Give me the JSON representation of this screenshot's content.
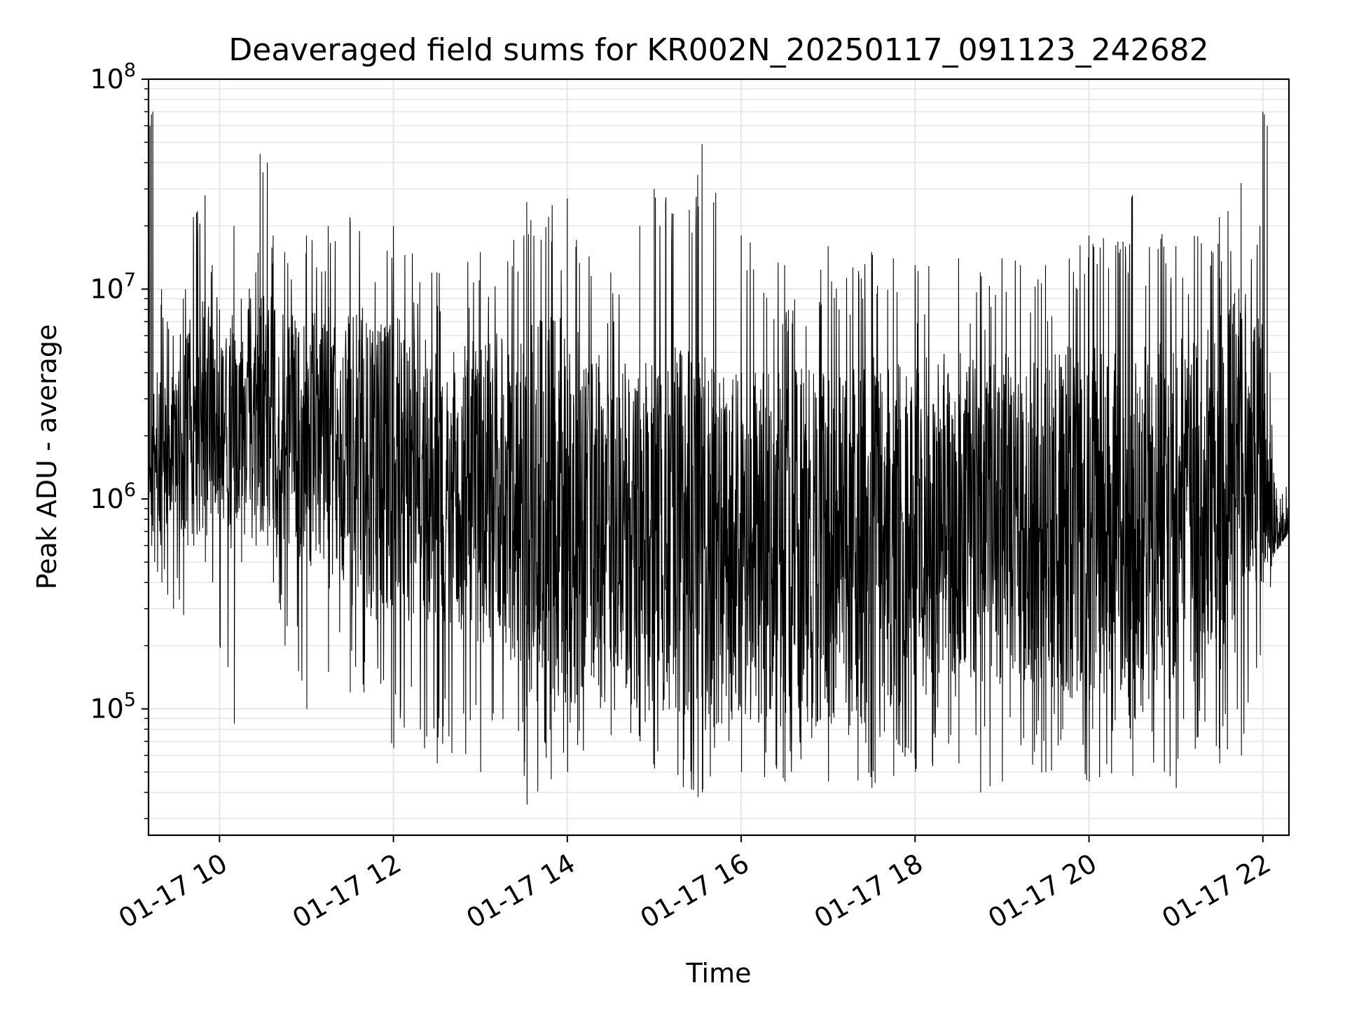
{
  "chart_data": {
    "type": "line",
    "title": "Deaveraged field sums for KR002N_20250117_091123_242682",
    "xlabel": "Time",
    "ylabel": "Peak ADU - average",
    "yscale": "log",
    "ylim": [
      25000,
      100000000
    ],
    "xlim": [
      "2025-01-17 09:11",
      "2025-01-17 22:18"
    ],
    "grid": true,
    "line_color": "#000000",
    "grid_color": "#e6e6e6",
    "xticks": [
      {
        "value": "2025-01-17 10:00",
        "label": "01-17 10"
      },
      {
        "value": "2025-01-17 12:00",
        "label": "01-17 12"
      },
      {
        "value": "2025-01-17 14:00",
        "label": "01-17 14"
      },
      {
        "value": "2025-01-17 16:00",
        "label": "01-17 16"
      },
      {
        "value": "2025-01-17 18:00",
        "label": "01-17 18"
      },
      {
        "value": "2025-01-17 20:00",
        "label": "01-17 20"
      },
      {
        "value": "2025-01-17 22:00",
        "label": "01-17 22"
      }
    ],
    "yticks": [
      {
        "value": 100000,
        "base": "10",
        "exp": "5"
      },
      {
        "value": 1000000,
        "base": "10",
        "exp": "6"
      },
      {
        "value": 10000000,
        "base": "10",
        "exp": "7"
      },
      {
        "value": 100000000,
        "base": "10",
        "exp": "8"
      }
    ],
    "series": [
      {
        "x": [
          "2025-01-17 09:11",
          "2025-01-17 09:12",
          "2025-01-17 09:13",
          "2025-01-17 09:14",
          "2025-01-17 09:15",
          "2025-01-17 09:17",
          "2025-01-17 09:20",
          "2025-01-17 09:24",
          "2025-01-17 09:28",
          "2025-01-17 09:35",
          "2025-01-17 09:42",
          "2025-01-17 09:50",
          "2025-01-17 09:55",
          "2025-01-17 10:00",
          "2025-01-17 10:10",
          "2025-01-17 10:15",
          "2025-01-17 10:25",
          "2025-01-17 10:28",
          "2025-01-17 10:30",
          "2025-01-17 10:33",
          "2025-01-17 10:37",
          "2025-01-17 10:45",
          "2025-01-17 11:00",
          "2025-01-17 11:15",
          "2025-01-17 11:30",
          "2025-01-17 12:00",
          "2025-01-17 12:30",
          "2025-01-17 13:00",
          "2025-01-17 13:30",
          "2025-01-17 13:32",
          "2025-01-17 14:00",
          "2025-01-17 14:30",
          "2025-01-17 14:50",
          "2025-01-17 15:00",
          "2025-01-17 15:30",
          "2025-01-17 15:33",
          "2025-01-17 16:00",
          "2025-01-17 16:30",
          "2025-01-17 17:00",
          "2025-01-17 17:30",
          "2025-01-17 17:45",
          "2025-01-17 18:00",
          "2025-01-17 18:30",
          "2025-01-17 18:45",
          "2025-01-17 19:00",
          "2025-01-17 19:30",
          "2025-01-17 20:00",
          "2025-01-17 20:30",
          "2025-01-17 21:00",
          "2025-01-17 21:30",
          "2025-01-17 21:45",
          "2025-01-17 21:58",
          "2025-01-17 22:00",
          "2025-01-17 22:01",
          "2025-01-17 22:03",
          "2025-01-17 22:05",
          "2025-01-17 22:08",
          "2025-01-17 22:12",
          "2025-01-17 22:18"
        ],
        "upper": [
          1800000,
          60000000,
          68000000,
          70000000,
          2000000,
          4000000,
          10000000,
          7000000,
          6000000,
          9000000,
          22000000,
          28000000,
          13000000,
          8000000,
          20000000,
          9000000,
          12000000,
          44000000,
          36000000,
          40000000,
          18000000,
          15000000,
          18000000,
          20000000,
          22000000,
          20000000,
          12000000,
          15000000,
          18000000,
          26000000,
          27000000,
          12000000,
          20000000,
          30000000,
          35000000,
          49000000,
          18000000,
          13000000,
          16000000,
          15000000,
          14000000,
          13000000,
          14000000,
          12000000,
          14000000,
          13000000,
          18000000,
          28000000,
          16000000,
          22000000,
          32000000,
          20000000,
          70000000,
          68000000,
          60000000,
          4000000,
          1200000,
          1000000,
          1300000
        ],
        "lower": [
          1000000,
          1200000,
          600000,
          700000,
          500000,
          450000,
          400000,
          350000,
          300000,
          280000,
          600000,
          500000,
          400000,
          200000,
          85000,
          500000,
          600000,
          700000,
          700000,
          600000,
          400000,
          200000,
          100000,
          150000,
          120000,
          65000,
          55000,
          50000,
          48000,
          35000,
          50000,
          75000,
          70000,
          52000,
          38000,
          40000,
          50000,
          45000,
          45000,
          42000,
          48000,
          50000,
          55000,
          40000,
          45000,
          50000,
          45000,
          48000,
          42000,
          55000,
          60000,
          180000,
          400000,
          500000,
          500000,
          380000,
          550000,
          600000,
          700000
        ],
        "typical": [
          1300000,
          2000000,
          1500000,
          1600000,
          1800000,
          1600000,
          1500000,
          1700000,
          2000000,
          1800000,
          2200000,
          2500000,
          2300000,
          2000000,
          2200000,
          2400000,
          2300000,
          3500000,
          3000000,
          2800000,
          2500000,
          2200000,
          2000000,
          1800000,
          1600000,
          1400000,
          1200000,
          1100000,
          1000000,
          900000,
          850000,
          800000,
          750000,
          700000,
          650000,
          620000,
          600000,
          580000,
          600000,
          650000,
          700000,
          720000,
          750000,
          760000,
          780000,
          800000,
          780000,
          760000,
          800000,
          1000000,
          1400000,
          1600000,
          1800000,
          1500000,
          1200000,
          900000,
          750000,
          700000,
          700000
        ]
      }
    ]
  }
}
